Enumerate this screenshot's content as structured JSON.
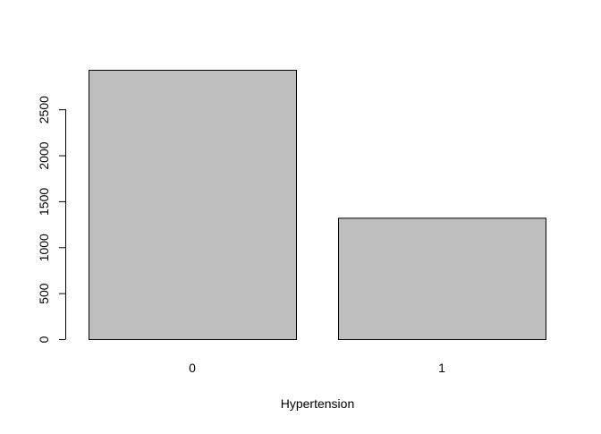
{
  "chart_data": {
    "type": "bar",
    "categories": [
      "0",
      "1"
    ],
    "values": [
      2930,
      1320
    ],
    "title": "",
    "xlabel": "Hypertension",
    "ylabel": "",
    "ylim": [
      0,
      2930
    ],
    "yticks": [
      0,
      500,
      1000,
      1500,
      2000,
      2500
    ],
    "ytick_labels": [
      "0",
      "500",
      "1000",
      "1500",
      "2000",
      "2500"
    ],
    "grid": false,
    "legend": "none",
    "bar_fill": "#bebebe",
    "bar_stroke": "#000000",
    "axis_color": "#000000"
  }
}
